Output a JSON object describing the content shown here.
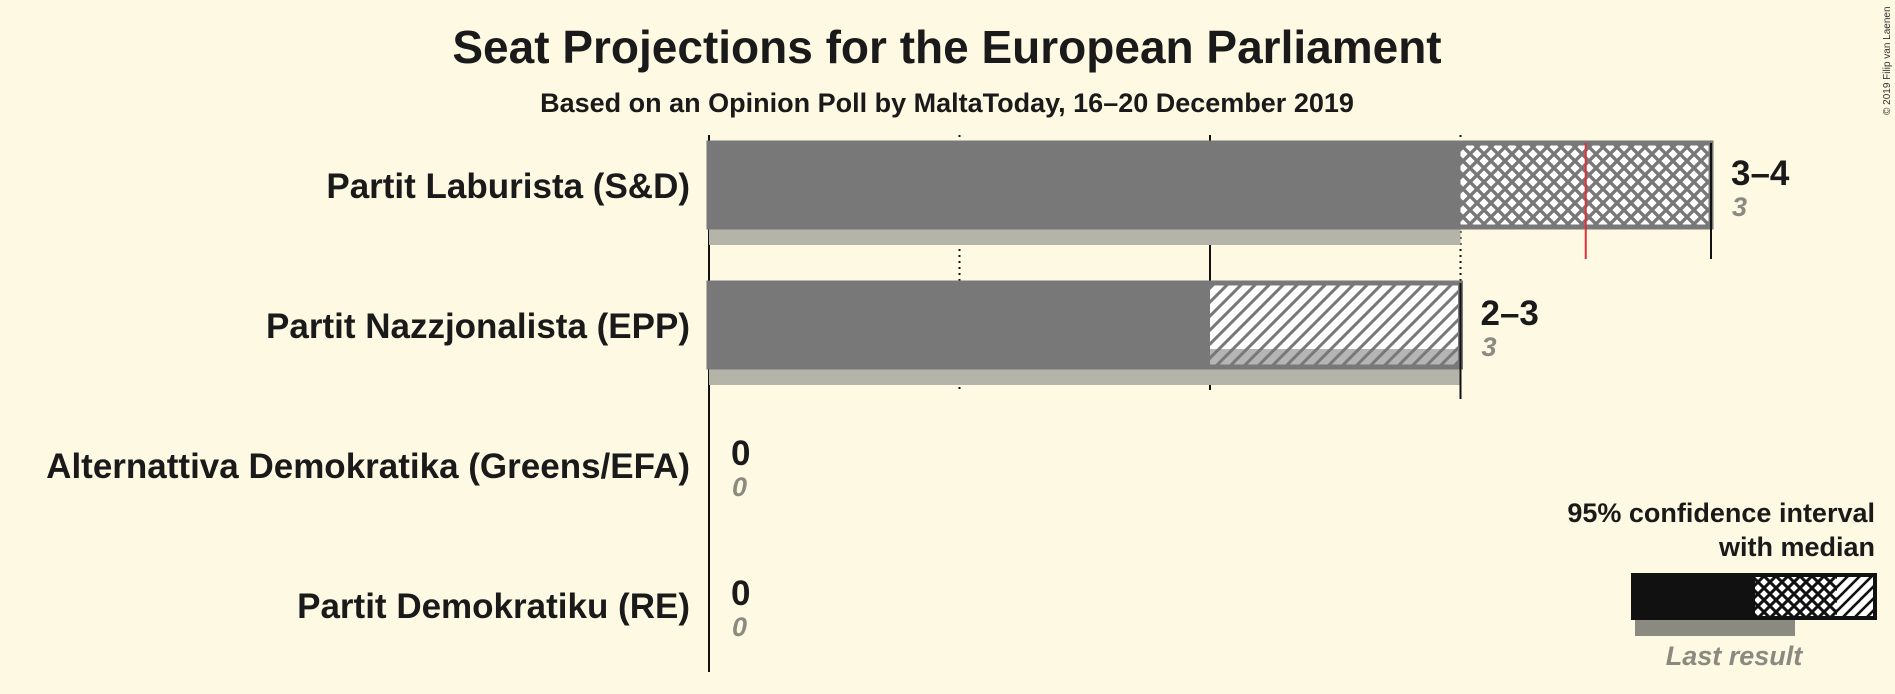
{
  "header": {
    "title": "Seat Projections for the European Parliament",
    "subtitle": "Based on an Opinion Poll by MaltaToday, 16–20 December 2019"
  },
  "copyright": "© 2019 Filip van Laenen",
  "legend": {
    "ci_line1": "95% confidence interval",
    "ci_line2": "with median",
    "last_result": "Last result"
  },
  "colors": {
    "background": "#fdf9e3",
    "bar": "#787878",
    "last_result": "#b4b4a8",
    "median": "#e0303a",
    "legend_solid": "#111111"
  },
  "chart_data": {
    "type": "bar",
    "title": "Seat Projections for the European Parliament",
    "subtitle": "Based on an Opinion Poll by MaltaToday, 16–20 December 2019",
    "xlim": [
      0,
      4
    ],
    "gridlines": [
      1,
      2,
      3
    ],
    "parties": [
      {
        "name": "Partit Laburista (S&D)",
        "ci_low": 3,
        "ci_high": 4,
        "median": 3.5,
        "last_result": 3,
        "range_label": "3–4",
        "last_label": "3"
      },
      {
        "name": "Partit Nazzjonalista (EPP)",
        "ci_low": 2,
        "ci_high": 3,
        "median": null,
        "last_result": 3,
        "range_label": "2–3",
        "last_label": "3"
      },
      {
        "name": "Alternattiva Demokratika (Greens/EFA)",
        "ci_low": 0,
        "ci_high": 0,
        "median": null,
        "last_result": 0,
        "range_label": "0",
        "last_label": "0"
      },
      {
        "name": "Partit Demokratiku (RE)",
        "ci_low": 0,
        "ci_high": 0,
        "median": null,
        "last_result": 0,
        "range_label": "0",
        "last_label": "0"
      }
    ]
  }
}
